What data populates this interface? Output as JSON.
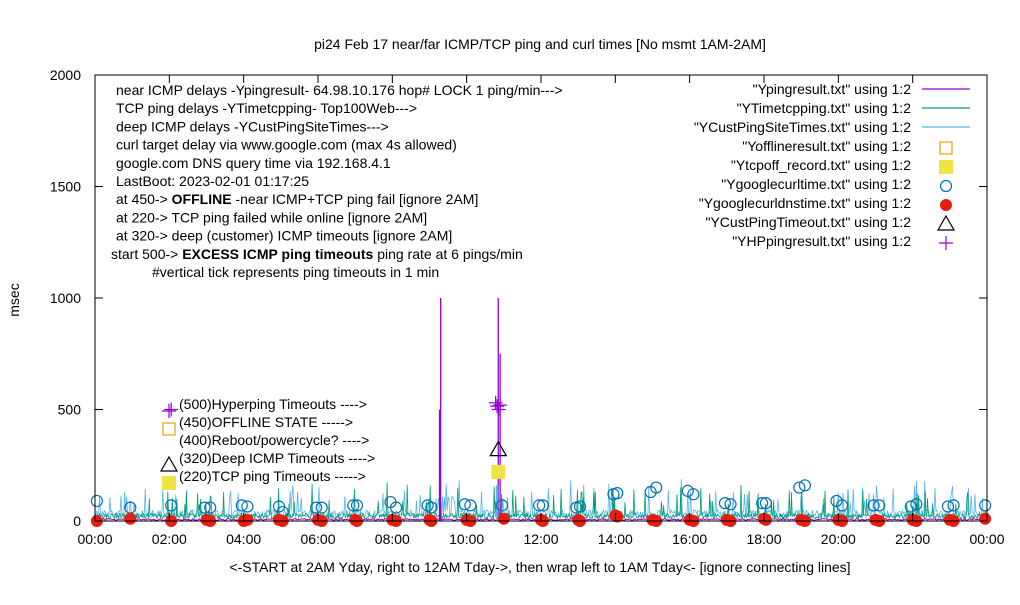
{
  "chart_data": {
    "type": "line",
    "title": "pi24 Feb 17  near/far ICMP/TCP ping and curl times [No msmt 1AM-2AM]",
    "xlabel": "<-START at 2AM Yday, right to 12AM Tday->, then wrap left to 1AM Tday<- [ignore connecting lines]",
    "ylabel": "msec",
    "xlim": [
      0,
      24
    ],
    "ylim": [
      0,
      2000
    ],
    "xticks": [
      {
        "v": 0,
        "label": "00:00"
      },
      {
        "v": 2,
        "label": "02:00"
      },
      {
        "v": 4,
        "label": "04:00"
      },
      {
        "v": 6,
        "label": "06:00"
      },
      {
        "v": 8,
        "label": "08:00"
      },
      {
        "v": 10,
        "label": "10:00"
      },
      {
        "v": 12,
        "label": "12:00"
      },
      {
        "v": 14,
        "label": "14:00"
      },
      {
        "v": 16,
        "label": "16:00"
      },
      {
        "v": 18,
        "label": "18:00"
      },
      {
        "v": 20,
        "label": "20:00"
      },
      {
        "v": 22,
        "label": "22:00"
      },
      {
        "v": 24,
        "label": "00:00"
      }
    ],
    "yticks": [
      {
        "v": 0,
        "label": "0"
      },
      {
        "v": 500,
        "label": "500"
      },
      {
        "v": 1000,
        "label": "1000"
      },
      {
        "v": 1500,
        "label": "1500"
      },
      {
        "v": 2000,
        "label": "2000"
      }
    ],
    "info_lines": [
      {
        "text": "near ICMP delays -Ypingresult- 64.98.10.176 hop# LOCK 1 ping/min--->",
        "bold": "",
        "rest": ""
      },
      {
        "text": "TCP ping delays -YTimetcpping- Top100Web--->",
        "bold": "",
        "rest": ""
      },
      {
        "text": "deep ICMP delays -YCustPingSiteTimes--->",
        "bold": "",
        "rest": ""
      },
      {
        "text": "curl target delay via www.google.com (max 4s allowed)",
        "bold": "",
        "rest": ""
      },
      {
        "text": "google.com DNS query time via 192.168.4.1",
        "bold": "",
        "rest": ""
      },
      {
        "text": "LastBoot: 2023-02-01 01:17:25",
        "bold": "",
        "rest": ""
      },
      {
        "text": "at 450-> ",
        "bold": "OFFLINE",
        "rest": " -near ICMP+TCP ping fail [ignore 2AM]"
      },
      {
        "text": "at 220-> TCP ping failed while online [ignore 2AM]",
        "bold": "",
        "rest": ""
      },
      {
        "text": "at 320-> deep (customer) ICMP timeouts [ignore 2AM]",
        "bold": "",
        "rest": ""
      },
      {
        "text": "start 500-> ",
        "bold": "EXCESS ICMP ping timeouts",
        "rest": "  ping rate at 6 pings/min"
      },
      {
        "text": "#vertical tick represents ping timeouts in 1 min",
        "bold": "",
        "rest": ""
      }
    ],
    "legend_position": "top-right",
    "legend": [
      {
        "name": "\"Ypingresult.txt\" using 1:2",
        "kind": "line",
        "color": "#9400d3"
      },
      {
        "name": "\"YTimetcpping.txt\" using 1:2",
        "kind": "line",
        "color": "#009e73"
      },
      {
        "name": "\"YCustPingSiteTimes.txt\" using 1:2",
        "kind": "line",
        "color": "#56b4e9"
      },
      {
        "name": "\"Yofflineresult.txt\" using 1:2",
        "kind": "square-open",
        "color": "#e69f00"
      },
      {
        "name": "\"Ytcpoff_record.txt\" using 1:2",
        "kind": "square-filled",
        "color": "#f0e442"
      },
      {
        "name": "\"Ygooglecurltime.txt\" using 1:2",
        "kind": "circle-open",
        "color": "#0072b2"
      },
      {
        "name": "\"Ygooglecurldnstime.txt\" using 1:2",
        "kind": "circle-filled",
        "color": "#e51e10"
      },
      {
        "name": "\"YCustPingTimeout.txt\" using 1:2",
        "kind": "triangle-open",
        "color": "#000000"
      },
      {
        "name": "\"YHPpingresult.txt\" using 1:2",
        "kind": "plus",
        "color": "#9400d3"
      }
    ],
    "key_labels": [
      {
        "y": 500,
        "kind": "plus",
        "color": "#9400d3",
        "text": "(500)Hyperping Timeouts ---->"
      },
      {
        "y": 450,
        "kind": "square-open",
        "color": "#e69f00",
        "text": "(450)OFFLINE STATE ----->"
      },
      {
        "y": 400,
        "kind": "none",
        "color": "#000000",
        "text": "(400)Reboot/powercycle? ---->"
      },
      {
        "y": 320,
        "kind": "triangle-open",
        "color": "#000000",
        "text": "(320)Deep ICMP Timeouts ---->"
      },
      {
        "y": 220,
        "kind": "square-filled",
        "color": "#f0e442",
        "text": "(220)TCP ping Timeouts ----->"
      }
    ],
    "near_icmp_spikes": [
      {
        "x": 9.3,
        "y": 1000
      },
      {
        "x": 9.27,
        "y": 500
      },
      {
        "x": 10.85,
        "y": 1000
      },
      {
        "x": 10.9,
        "y": 750
      }
    ],
    "hyperping_timeouts": [
      {
        "x": 2.05,
        "y": 500
      },
      {
        "x": 10.78,
        "y": 530
      },
      {
        "x": 10.82,
        "y": 515
      },
      {
        "x": 10.86,
        "y": 500
      },
      {
        "x": 10.9,
        "y": 520
      }
    ],
    "tcp_timeouts": [
      {
        "x": 10.85,
        "y": 220
      }
    ],
    "deep_icmp_timeouts": [
      {
        "x": 10.85,
        "y": 320
      }
    ],
    "curl_times": [
      {
        "x": 0.05,
        "y": 90
      },
      {
        "x": 0.95,
        "y": 60
      },
      {
        "x": 2.05,
        "y": 70
      },
      {
        "x": 2.95,
        "y": 60
      },
      {
        "x": 3.1,
        "y": 60
      },
      {
        "x": 3.95,
        "y": 70
      },
      {
        "x": 4.1,
        "y": 65
      },
      {
        "x": 4.95,
        "y": 65
      },
      {
        "x": 5.05,
        "y": 40
      },
      {
        "x": 5.95,
        "y": 60
      },
      {
        "x": 6.1,
        "y": 60
      },
      {
        "x": 6.95,
        "y": 70
      },
      {
        "x": 7.05,
        "y": 70
      },
      {
        "x": 7.95,
        "y": 85
      },
      {
        "x": 8.1,
        "y": 60
      },
      {
        "x": 8.95,
        "y": 70
      },
      {
        "x": 9.05,
        "y": 60
      },
      {
        "x": 9.95,
        "y": 75
      },
      {
        "x": 10.1,
        "y": 70
      },
      {
        "x": 10.95,
        "y": 70
      },
      {
        "x": 11.95,
        "y": 70
      },
      {
        "x": 12.05,
        "y": 70
      },
      {
        "x": 12.95,
        "y": 60
      },
      {
        "x": 13.05,
        "y": 65
      },
      {
        "x": 13.95,
        "y": 120
      },
      {
        "x": 14.05,
        "y": 125
      },
      {
        "x": 14.95,
        "y": 130
      },
      {
        "x": 15.1,
        "y": 150
      },
      {
        "x": 15.95,
        "y": 135
      },
      {
        "x": 16.1,
        "y": 120
      },
      {
        "x": 16.95,
        "y": 80
      },
      {
        "x": 17.1,
        "y": 75
      },
      {
        "x": 17.95,
        "y": 80
      },
      {
        "x": 18.05,
        "y": 80
      },
      {
        "x": 18.95,
        "y": 150
      },
      {
        "x": 19.1,
        "y": 160
      },
      {
        "x": 19.95,
        "y": 90
      },
      {
        "x": 20.1,
        "y": 70
      },
      {
        "x": 20.95,
        "y": 70
      },
      {
        "x": 21.1,
        "y": 70
      },
      {
        "x": 21.95,
        "y": 65
      },
      {
        "x": 22.1,
        "y": 75
      },
      {
        "x": 22.95,
        "y": 65
      },
      {
        "x": 23.1,
        "y": 70
      },
      {
        "x": 23.95,
        "y": 70
      }
    ],
    "dns_times": [
      {
        "x": 0.05,
        "y": 0
      },
      {
        "x": 0.95,
        "y": 10
      },
      {
        "x": 2.05,
        "y": 0
      },
      {
        "x": 3.0,
        "y": 5
      },
      {
        "x": 3.1,
        "y": 0
      },
      {
        "x": 4.0,
        "y": 0
      },
      {
        "x": 4.1,
        "y": 5
      },
      {
        "x": 4.95,
        "y": 5
      },
      {
        "x": 5.05,
        "y": 0
      },
      {
        "x": 6.0,
        "y": 5
      },
      {
        "x": 6.1,
        "y": 0
      },
      {
        "x": 7.0,
        "y": 5
      },
      {
        "x": 7.05,
        "y": 0
      },
      {
        "x": 8.0,
        "y": 5
      },
      {
        "x": 8.1,
        "y": 0
      },
      {
        "x": 9.0,
        "y": 5
      },
      {
        "x": 9.05,
        "y": 0
      },
      {
        "x": 10.0,
        "y": 5
      },
      {
        "x": 10.1,
        "y": 0
      },
      {
        "x": 11.0,
        "y": 10
      },
      {
        "x": 12.0,
        "y": 5
      },
      {
        "x": 12.05,
        "y": 0
      },
      {
        "x": 13.0,
        "y": 5
      },
      {
        "x": 13.05,
        "y": 0
      },
      {
        "x": 14.0,
        "y": 25
      },
      {
        "x": 14.05,
        "y": 20
      },
      {
        "x": 15.0,
        "y": 5
      },
      {
        "x": 15.1,
        "y": 0
      },
      {
        "x": 16.0,
        "y": 5
      },
      {
        "x": 16.1,
        "y": 0
      },
      {
        "x": 17.0,
        "y": 5
      },
      {
        "x": 17.1,
        "y": 0
      },
      {
        "x": 18.0,
        "y": 10
      },
      {
        "x": 18.05,
        "y": 5
      },
      {
        "x": 19.0,
        "y": 5
      },
      {
        "x": 19.1,
        "y": 0
      },
      {
        "x": 20.0,
        "y": 5
      },
      {
        "x": 20.1,
        "y": 0
      },
      {
        "x": 21.0,
        "y": 5
      },
      {
        "x": 21.1,
        "y": 0
      },
      {
        "x": 22.0,
        "y": 5
      },
      {
        "x": 22.1,
        "y": 0
      },
      {
        "x": 23.0,
        "y": 5
      },
      {
        "x": 23.1,
        "y": 0
      },
      {
        "x": 23.95,
        "y": 10
      }
    ],
    "colors": {
      "near_icmp": "#9400d3",
      "tcp": "#009e73",
      "deep_icmp": "#56b4e9",
      "curl_circle": "#0072b2",
      "dns_dot": "#e51e10",
      "offline": "#e69f00",
      "tcp_timeout": "#f0e442",
      "deep_timeout": "#000000"
    }
  }
}
